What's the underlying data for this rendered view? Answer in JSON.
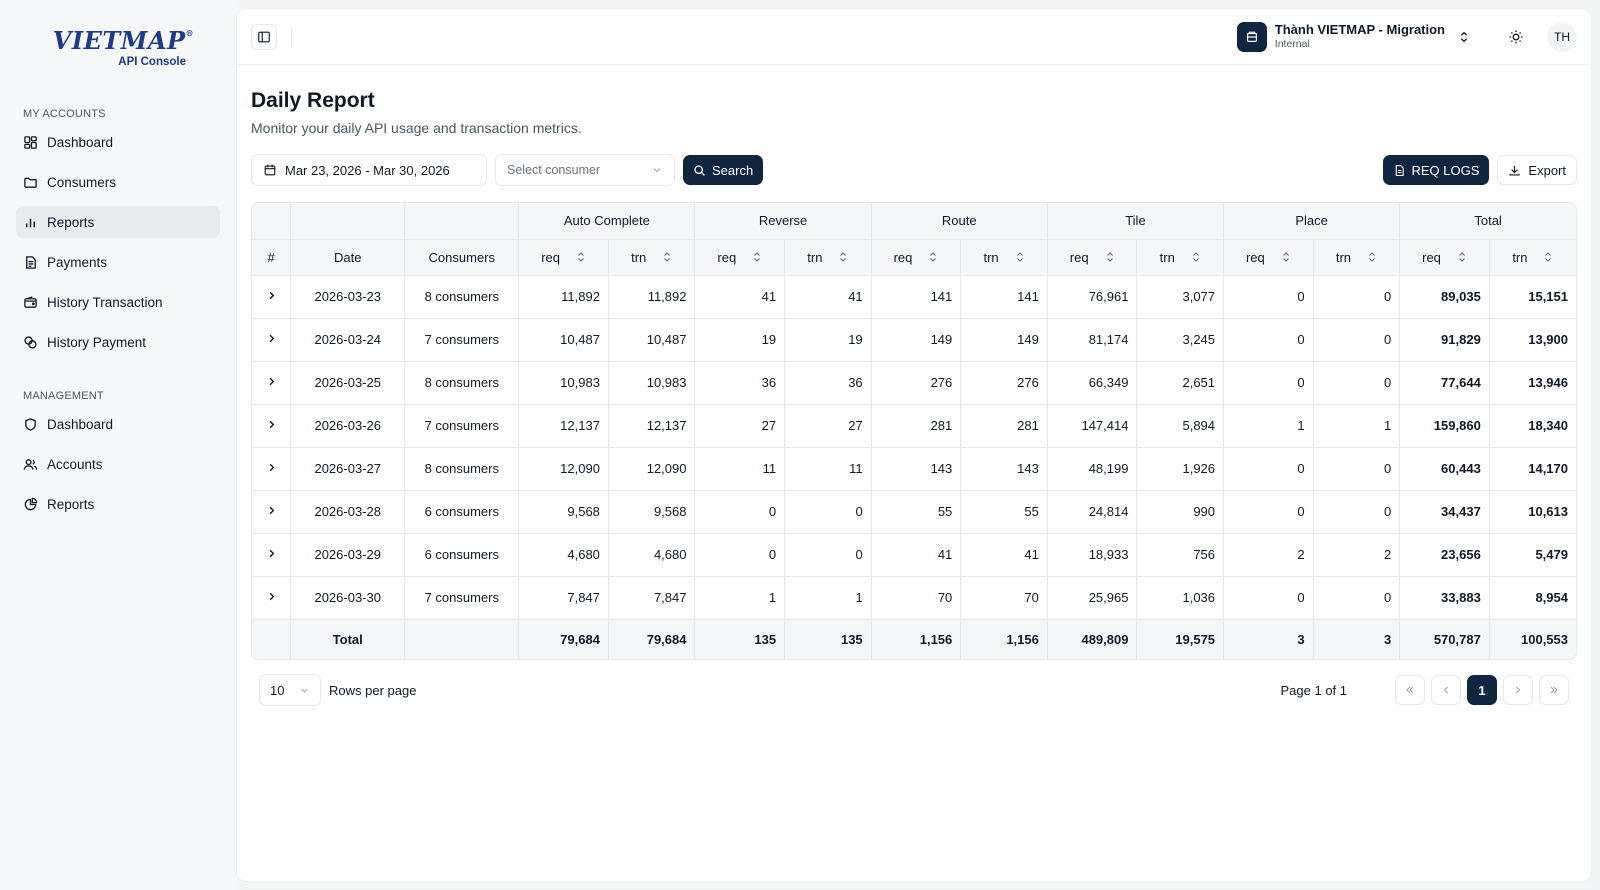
{
  "brand": {
    "logo_text": "VIETMAP",
    "logo_mark": "®",
    "subtitle": "API Console"
  },
  "sidebar": {
    "sections": [
      {
        "label": "MY ACCOUNTS",
        "items": [
          {
            "label": "Dashboard",
            "icon": "dashboard-grid-icon"
          },
          {
            "label": "Consumers",
            "icon": "folder-icon"
          },
          {
            "label": "Reports",
            "icon": "bar-chart-icon",
            "active": true
          },
          {
            "label": "Payments",
            "icon": "receipt-icon"
          },
          {
            "label": "History Transaction",
            "icon": "wallet-icon"
          },
          {
            "label": "History Payment",
            "icon": "coins-icon"
          }
        ]
      },
      {
        "label": "MANAGEMENT",
        "items": [
          {
            "label": "Dashboard",
            "icon": "shield-icon"
          },
          {
            "label": "Accounts",
            "icon": "users-icon"
          },
          {
            "label": "Reports",
            "icon": "pie-chart-icon"
          }
        ]
      }
    ]
  },
  "topbar": {
    "org_name": "Thành VIETMAP - Migration",
    "org_type": "Internal",
    "avatar_initials": "TH"
  },
  "page": {
    "title": "Daily Report",
    "subtitle": "Monitor your daily API usage and transaction metrics."
  },
  "filters": {
    "date_range": "Mar 23, 2026 - Mar 30, 2026",
    "consumer_placeholder": "Select consumer",
    "search_label": "Search",
    "req_logs_label": "REQ LOGS",
    "export_label": "Export"
  },
  "table": {
    "col_hash": "#",
    "col_date": "Date",
    "col_consumers": "Consumers",
    "groups": [
      "Auto Complete",
      "Reverse",
      "Route",
      "Tile",
      "Place",
      "Total"
    ],
    "sub_req": "req",
    "sub_trn": "trn",
    "rows": [
      {
        "date": "2026-03-23",
        "consumers": "8 consumers",
        "vals": [
          "11,892",
          "11,892",
          "41",
          "41",
          "141",
          "141",
          "76,961",
          "3,077",
          "0",
          "0",
          "89,035",
          "15,151"
        ]
      },
      {
        "date": "2026-03-24",
        "consumers": "7 consumers",
        "vals": [
          "10,487",
          "10,487",
          "19",
          "19",
          "149",
          "149",
          "81,174",
          "3,245",
          "0",
          "0",
          "91,829",
          "13,900"
        ]
      },
      {
        "date": "2026-03-25",
        "consumers": "8 consumers",
        "vals": [
          "10,983",
          "10,983",
          "36",
          "36",
          "276",
          "276",
          "66,349",
          "2,651",
          "0",
          "0",
          "77,644",
          "13,946"
        ]
      },
      {
        "date": "2026-03-26",
        "consumers": "7 consumers",
        "vals": [
          "12,137",
          "12,137",
          "27",
          "27",
          "281",
          "281",
          "147,414",
          "5,894",
          "1",
          "1",
          "159,860",
          "18,340"
        ]
      },
      {
        "date": "2026-03-27",
        "consumers": "8 consumers",
        "vals": [
          "12,090",
          "12,090",
          "11",
          "11",
          "143",
          "143",
          "48,199",
          "1,926",
          "0",
          "0",
          "60,443",
          "14,170"
        ]
      },
      {
        "date": "2026-03-28",
        "consumers": "6 consumers",
        "vals": [
          "9,568",
          "9,568",
          "0",
          "0",
          "55",
          "55",
          "24,814",
          "990",
          "0",
          "0",
          "34,437",
          "10,613"
        ]
      },
      {
        "date": "2026-03-29",
        "consumers": "6 consumers",
        "vals": [
          "4,680",
          "4,680",
          "0",
          "0",
          "41",
          "41",
          "18,933",
          "756",
          "2",
          "2",
          "23,656",
          "5,479"
        ]
      },
      {
        "date": "2026-03-30",
        "consumers": "7 consumers",
        "vals": [
          "7,847",
          "7,847",
          "1",
          "1",
          "70",
          "70",
          "25,965",
          "1,036",
          "0",
          "0",
          "33,883",
          "8,954"
        ]
      }
    ],
    "total": {
      "label": "Total",
      "vals": [
        "79,684",
        "79,684",
        "135",
        "135",
        "1,156",
        "1,156",
        "489,809",
        "19,575",
        "3",
        "3",
        "570,787",
        "100,553"
      ]
    }
  },
  "pagination": {
    "rows_per_page_value": "10",
    "rows_per_page_label": "Rows per page",
    "page_info": "Page 1 of 1",
    "current_page": "1"
  },
  "colors": {
    "primary": "#0f2540",
    "brand_blue": "#1e3a8a",
    "header_bg": "#f4f6f8"
  }
}
